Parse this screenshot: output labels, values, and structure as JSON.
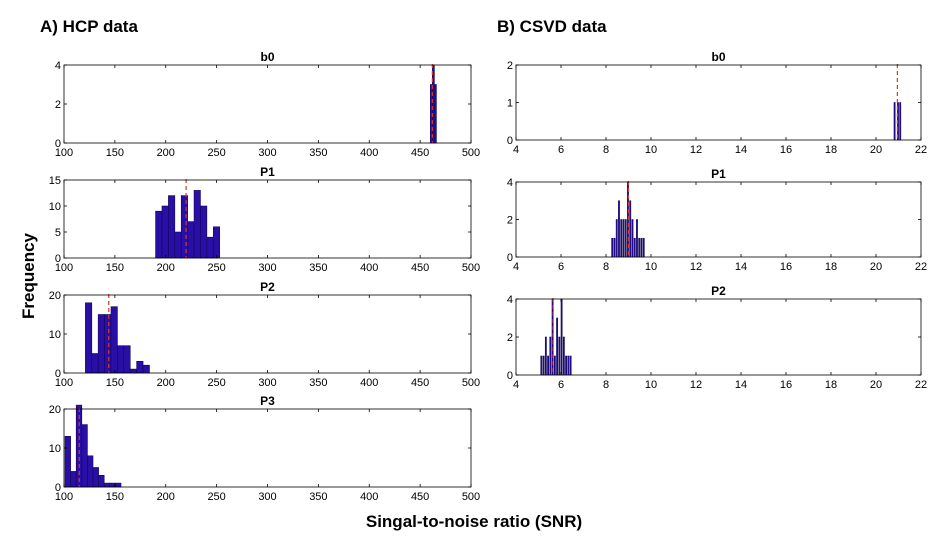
{
  "panels": [
    {
      "title": "A) HCP data"
    },
    {
      "title": "B)  CSVD data"
    }
  ],
  "ylabel": "Frequency",
  "xlabel": "Singal-to-noise ratio (SNR)",
  "colors": {
    "bar_fill": "#2a0fa6",
    "bar_edge": "#140659",
    "median_line": "#d9362b"
  },
  "chart_data": [
    {
      "type": "bar",
      "panel": "A) HCP data",
      "title": "b0",
      "xlim": [
        100,
        500
      ],
      "ylim": [
        0,
        4
      ],
      "xticks": [
        100,
        150,
        200,
        250,
        300,
        350,
        400,
        450,
        500
      ],
      "yticks": [
        0,
        2,
        4
      ],
      "bin_width": 2,
      "bins": [
        {
          "x": 460,
          "y": 3
        },
        {
          "x": 462,
          "y": 4
        },
        {
          "x": 464,
          "y": 3
        }
      ],
      "median": 462
    },
    {
      "type": "bar",
      "panel": "A) HCP data",
      "title": "P1",
      "xlim": [
        100,
        500
      ],
      "ylim": [
        0,
        15
      ],
      "xticks": [
        100,
        150,
        200,
        250,
        300,
        350,
        400,
        450,
        500
      ],
      "yticks": [
        0,
        5,
        10,
        15
      ],
      "bin_width": 6.3,
      "bins": [
        {
          "x": 190,
          "y": 9
        },
        {
          "x": 196.3,
          "y": 10
        },
        {
          "x": 202.6,
          "y": 12
        },
        {
          "x": 208.9,
          "y": 5
        },
        {
          "x": 215.2,
          "y": 12
        },
        {
          "x": 221.5,
          "y": 7
        },
        {
          "x": 227.8,
          "y": 13
        },
        {
          "x": 234.1,
          "y": 10
        },
        {
          "x": 240.4,
          "y": 4
        },
        {
          "x": 246.7,
          "y": 6
        }
      ],
      "median": 220
    },
    {
      "type": "bar",
      "panel": "A) HCP data",
      "title": "P2",
      "xlim": [
        100,
        500
      ],
      "ylim": [
        0,
        20
      ],
      "xticks": [
        100,
        150,
        200,
        250,
        300,
        350,
        400,
        450,
        500
      ],
      "yticks": [
        0,
        10,
        20
      ],
      "bin_width": 6.3,
      "bins": [
        {
          "x": 121,
          "y": 18
        },
        {
          "x": 127.3,
          "y": 5
        },
        {
          "x": 133.6,
          "y": 15
        },
        {
          "x": 139.9,
          "y": 15
        },
        {
          "x": 146.2,
          "y": 17
        },
        {
          "x": 152.5,
          "y": 7
        },
        {
          "x": 158.8,
          "y": 7
        },
        {
          "x": 165.1,
          "y": 1
        },
        {
          "x": 171.4,
          "y": 3
        },
        {
          "x": 177.7,
          "y": 2
        }
      ],
      "median": 144
    },
    {
      "type": "bar",
      "panel": "A) HCP data",
      "title": "P3",
      "xlim": [
        100,
        500
      ],
      "ylim": [
        0,
        20
      ],
      "xticks": [
        100,
        150,
        200,
        250,
        300,
        350,
        400,
        450,
        500
      ],
      "yticks": [
        0,
        10,
        20
      ],
      "bin_width": 5.5,
      "bins": [
        {
          "x": 101,
          "y": 13
        },
        {
          "x": 106.5,
          "y": 4
        },
        {
          "x": 112,
          "y": 21
        },
        {
          "x": 117.5,
          "y": 16
        },
        {
          "x": 123,
          "y": 8
        },
        {
          "x": 128.5,
          "y": 5
        },
        {
          "x": 134,
          "y": 3
        },
        {
          "x": 139.5,
          "y": 1
        },
        {
          "x": 145,
          "y": 1
        },
        {
          "x": 150.5,
          "y": 1
        }
      ],
      "median": 115
    },
    {
      "type": "bar",
      "panel": "B)  CSVD data",
      "title": "b0",
      "xlim": [
        4,
        22
      ],
      "ylim": [
        0,
        2
      ],
      "xticks": [
        4,
        6,
        8,
        10,
        12,
        14,
        16,
        18,
        20,
        22
      ],
      "yticks": [
        0,
        1,
        2
      ],
      "bin_width": 0.05,
      "bins": [
        {
          "x": 20.8,
          "y": 1
        },
        {
          "x": 20.95,
          "y": 1
        },
        {
          "x": 21.05,
          "y": 1
        }
      ],
      "median": 20.95
    },
    {
      "type": "bar",
      "panel": "B)  CSVD data",
      "title": "P1",
      "xlim": [
        4,
        22
      ],
      "ylim": [
        0,
        4
      ],
      "xticks": [
        4,
        6,
        8,
        10,
        12,
        14,
        16,
        18,
        20,
        22
      ],
      "yticks": [
        0,
        2,
        4
      ],
      "bin_width": 0.05,
      "bins": [
        {
          "x": 8.25,
          "y": 1
        },
        {
          "x": 8.35,
          "y": 1
        },
        {
          "x": 8.45,
          "y": 2
        },
        {
          "x": 8.55,
          "y": 3
        },
        {
          "x": 8.65,
          "y": 2
        },
        {
          "x": 8.75,
          "y": 2
        },
        {
          "x": 8.85,
          "y": 2
        },
        {
          "x": 8.95,
          "y": 4
        },
        {
          "x": 9.05,
          "y": 3
        },
        {
          "x": 9.15,
          "y": 2
        },
        {
          "x": 9.25,
          "y": 1
        },
        {
          "x": 9.35,
          "y": 2
        },
        {
          "x": 9.45,
          "y": 1
        },
        {
          "x": 9.55,
          "y": 1
        },
        {
          "x": 9.65,
          "y": 1
        }
      ],
      "median": 9.0
    },
    {
      "type": "bar",
      "panel": "B)  CSVD data",
      "title": "P2",
      "xlim": [
        4,
        22
      ],
      "ylim": [
        0,
        4
      ],
      "xticks": [
        4,
        6,
        8,
        10,
        12,
        14,
        16,
        18,
        20,
        22
      ],
      "yticks": [
        0,
        2,
        4
      ],
      "bin_width": 0.05,
      "bins": [
        {
          "x": 5.1,
          "y": 1
        },
        {
          "x": 5.2,
          "y": 1
        },
        {
          "x": 5.3,
          "y": 2
        },
        {
          "x": 5.4,
          "y": 1
        },
        {
          "x": 5.5,
          "y": 2
        },
        {
          "x": 5.6,
          "y": 4
        },
        {
          "x": 5.7,
          "y": 1
        },
        {
          "x": 5.8,
          "y": 3
        },
        {
          "x": 5.9,
          "y": 2
        },
        {
          "x": 6.0,
          "y": 4
        },
        {
          "x": 6.1,
          "y": 2
        },
        {
          "x": 6.2,
          "y": 1
        },
        {
          "x": 6.3,
          "y": 1
        },
        {
          "x": 6.4,
          "y": 1
        }
      ],
      "median": 5.65
    }
  ]
}
